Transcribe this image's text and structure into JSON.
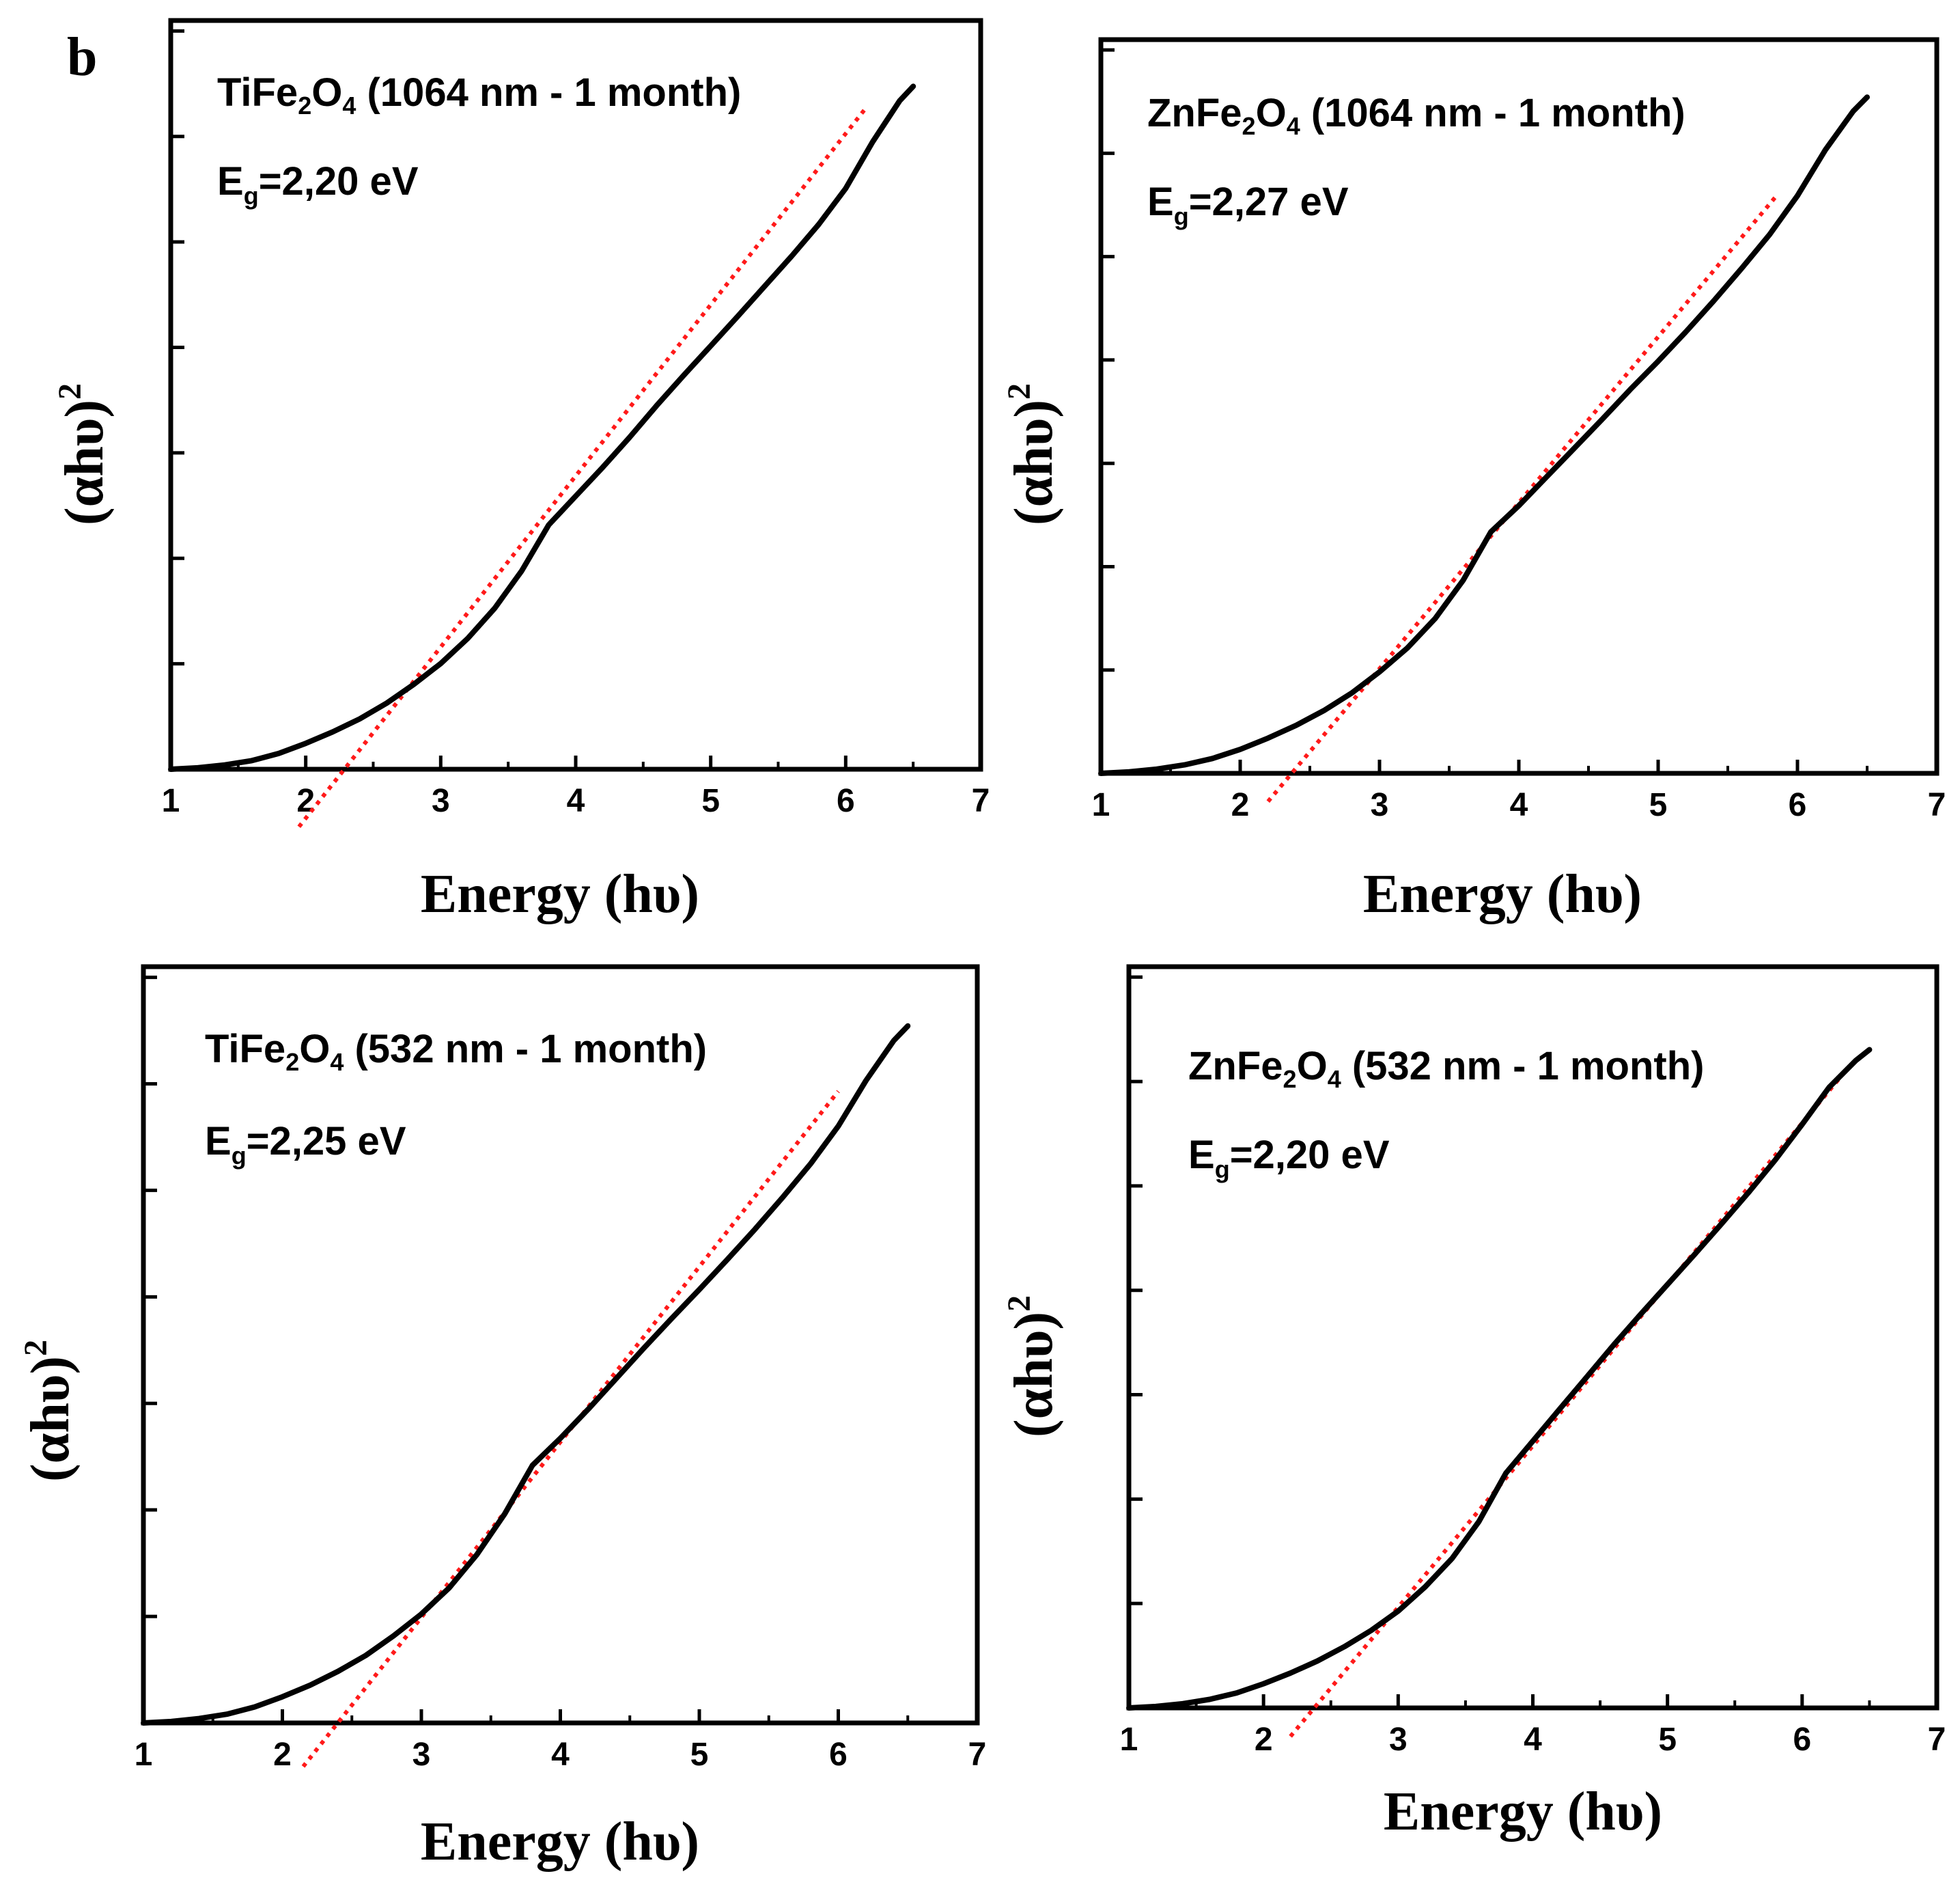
{
  "panel_label": "b",
  "colors": {
    "curve": "#000000",
    "fit": "#ff1a1a",
    "axis": "#000000"
  },
  "chart_data": [
    {
      "type": "line",
      "annotation": {
        "compound": "TiFe",
        "sub1": "2",
        "mid": "O",
        "sub2": "4",
        "condition": " (1064 nm - 1 month)"
      },
      "bandgap": {
        "prefix": "E",
        "sub": "g",
        "text": "=2,20 eV",
        "value": 2.2
      },
      "xlabel": "Energy (hυ)",
      "ylabel": "(αhυ)",
      "ylabel_sup": "2",
      "xlim": [
        1,
        7
      ],
      "ylim": [
        0,
        1
      ],
      "xticks": [
        1,
        2,
        3,
        4,
        5,
        6,
        7
      ],
      "x": [
        1.0,
        1.2,
        1.4,
        1.6,
        1.8,
        2.0,
        2.2,
        2.4,
        2.6,
        2.8,
        3.0,
        3.2,
        3.4,
        3.6,
        3.8,
        4.0,
        4.2,
        4.4,
        4.6,
        4.8,
        5.0,
        5.2,
        5.4,
        5.6,
        5.8,
        6.0,
        6.2,
        6.4,
        6.5
      ],
      "y": [
        0.0,
        0.002,
        0.006,
        0.012,
        0.022,
        0.036,
        0.052,
        0.07,
        0.092,
        0.118,
        0.147,
        0.182,
        0.224,
        0.276,
        0.34,
        0.38,
        0.42,
        0.462,
        0.506,
        0.548,
        0.589,
        0.63,
        0.672,
        0.714,
        0.758,
        0.808,
        0.873,
        0.93,
        0.95
      ],
      "fit": {
        "x": [
          1.95,
          6.15
        ],
        "y": [
          -0.08,
          0.92
        ]
      }
    },
    {
      "type": "line",
      "annotation": {
        "compound": "ZnFe",
        "sub1": "2",
        "mid": "O",
        "sub2": "4",
        "condition": " (1064 nm - 1 month)"
      },
      "bandgap": {
        "prefix": "E",
        "sub": "g",
        "text": "=2,27 eV",
        "value": 2.27
      },
      "xlabel": "Energy (hυ)",
      "ylabel": "(αhυ)",
      "ylabel_sup": "2",
      "xlim": [
        1,
        7
      ],
      "ylim": [
        0,
        1
      ],
      "xticks": [
        1,
        2,
        3,
        4,
        5,
        6,
        7
      ],
      "x": [
        1.0,
        1.2,
        1.4,
        1.6,
        1.8,
        2.0,
        2.2,
        2.4,
        2.6,
        2.8,
        3.0,
        3.2,
        3.4,
        3.6,
        3.8,
        4.0,
        4.2,
        4.4,
        4.6,
        4.8,
        5.0,
        5.2,
        5.4,
        5.6,
        5.8,
        6.0,
        6.2,
        6.4,
        6.5
      ],
      "y": [
        0.0,
        0.002,
        0.006,
        0.012,
        0.021,
        0.034,
        0.05,
        0.068,
        0.089,
        0.114,
        0.144,
        0.178,
        0.22,
        0.274,
        0.343,
        0.38,
        0.421,
        0.462,
        0.503,
        0.545,
        0.585,
        0.627,
        0.671,
        0.717,
        0.765,
        0.82,
        0.885,
        0.94,
        0.96
      ],
      "fit": {
        "x": [
          2.2,
          5.85
        ],
        "y": [
          -0.04,
          0.82
        ]
      }
    },
    {
      "type": "line",
      "annotation": {
        "compound": "TiFe",
        "sub1": "2",
        "mid": "O",
        "sub2": "4",
        "condition": " (532 nm - 1 month)"
      },
      "bandgap": {
        "prefix": "E",
        "sub": "g",
        "text": "=2,25 eV",
        "value": 2.25
      },
      "xlabel": "Energy (hυ)",
      "ylabel": "(αhυ)",
      "ylabel_sup": "2",
      "xlim": [
        1,
        7
      ],
      "ylim": [
        0,
        1
      ],
      "xticks": [
        1,
        2,
        3,
        4,
        5,
        6,
        7
      ],
      "x": [
        1.0,
        1.2,
        1.4,
        1.6,
        1.8,
        2.0,
        2.2,
        2.4,
        2.6,
        2.8,
        3.0,
        3.2,
        3.4,
        3.6,
        3.8,
        4.0,
        4.2,
        4.4,
        4.6,
        4.8,
        5.0,
        5.2,
        5.4,
        5.6,
        5.8,
        6.0,
        6.2,
        6.4,
        6.5
      ],
      "y": [
        0.0,
        0.002,
        0.006,
        0.012,
        0.022,
        0.036,
        0.052,
        0.071,
        0.093,
        0.12,
        0.15,
        0.186,
        0.232,
        0.288,
        0.355,
        0.392,
        0.432,
        0.474,
        0.516,
        0.557,
        0.597,
        0.638,
        0.68,
        0.724,
        0.77,
        0.822,
        0.885,
        0.94,
        0.96
      ],
      "fit": {
        "x": [
          2.15,
          6.0
        ],
        "y": [
          -0.06,
          0.87
        ]
      }
    },
    {
      "type": "line",
      "annotation": {
        "compound": "ZnFe",
        "sub1": "2",
        "mid": "O",
        "sub2": "4",
        "condition": " (532 nm - 1 month)"
      },
      "bandgap": {
        "prefix": "E",
        "sub": "g",
        "text": "=2,20 eV",
        "value": 2.2
      },
      "xlabel": "Energy (hυ)",
      "ylabel": "(αhυ)",
      "ylabel_sup": "2",
      "xlim": [
        1,
        7
      ],
      "ylim": [
        0,
        1
      ],
      "xticks": [
        1,
        2,
        3,
        4,
        5,
        6,
        7
      ],
      "x": [
        1.0,
        1.2,
        1.4,
        1.6,
        1.8,
        2.0,
        2.2,
        2.4,
        2.6,
        2.8,
        3.0,
        3.2,
        3.4,
        3.6,
        3.8,
        4.0,
        4.2,
        4.4,
        4.6,
        4.8,
        5.0,
        5.2,
        5.4,
        5.6,
        5.8,
        6.0,
        6.2,
        6.4,
        6.5
      ],
      "y": [
        0.0,
        0.002,
        0.006,
        0.012,
        0.021,
        0.034,
        0.049,
        0.066,
        0.086,
        0.109,
        0.136,
        0.17,
        0.21,
        0.262,
        0.33,
        0.375,
        0.42,
        0.465,
        0.51,
        0.553,
        0.595,
        0.637,
        0.68,
        0.724,
        0.77,
        0.82,
        0.872,
        0.91,
        0.925
      ],
      "fit": {
        "x": [
          2.2,
          6.3
        ],
        "y": [
          -0.04,
          0.89
        ]
      }
    }
  ]
}
